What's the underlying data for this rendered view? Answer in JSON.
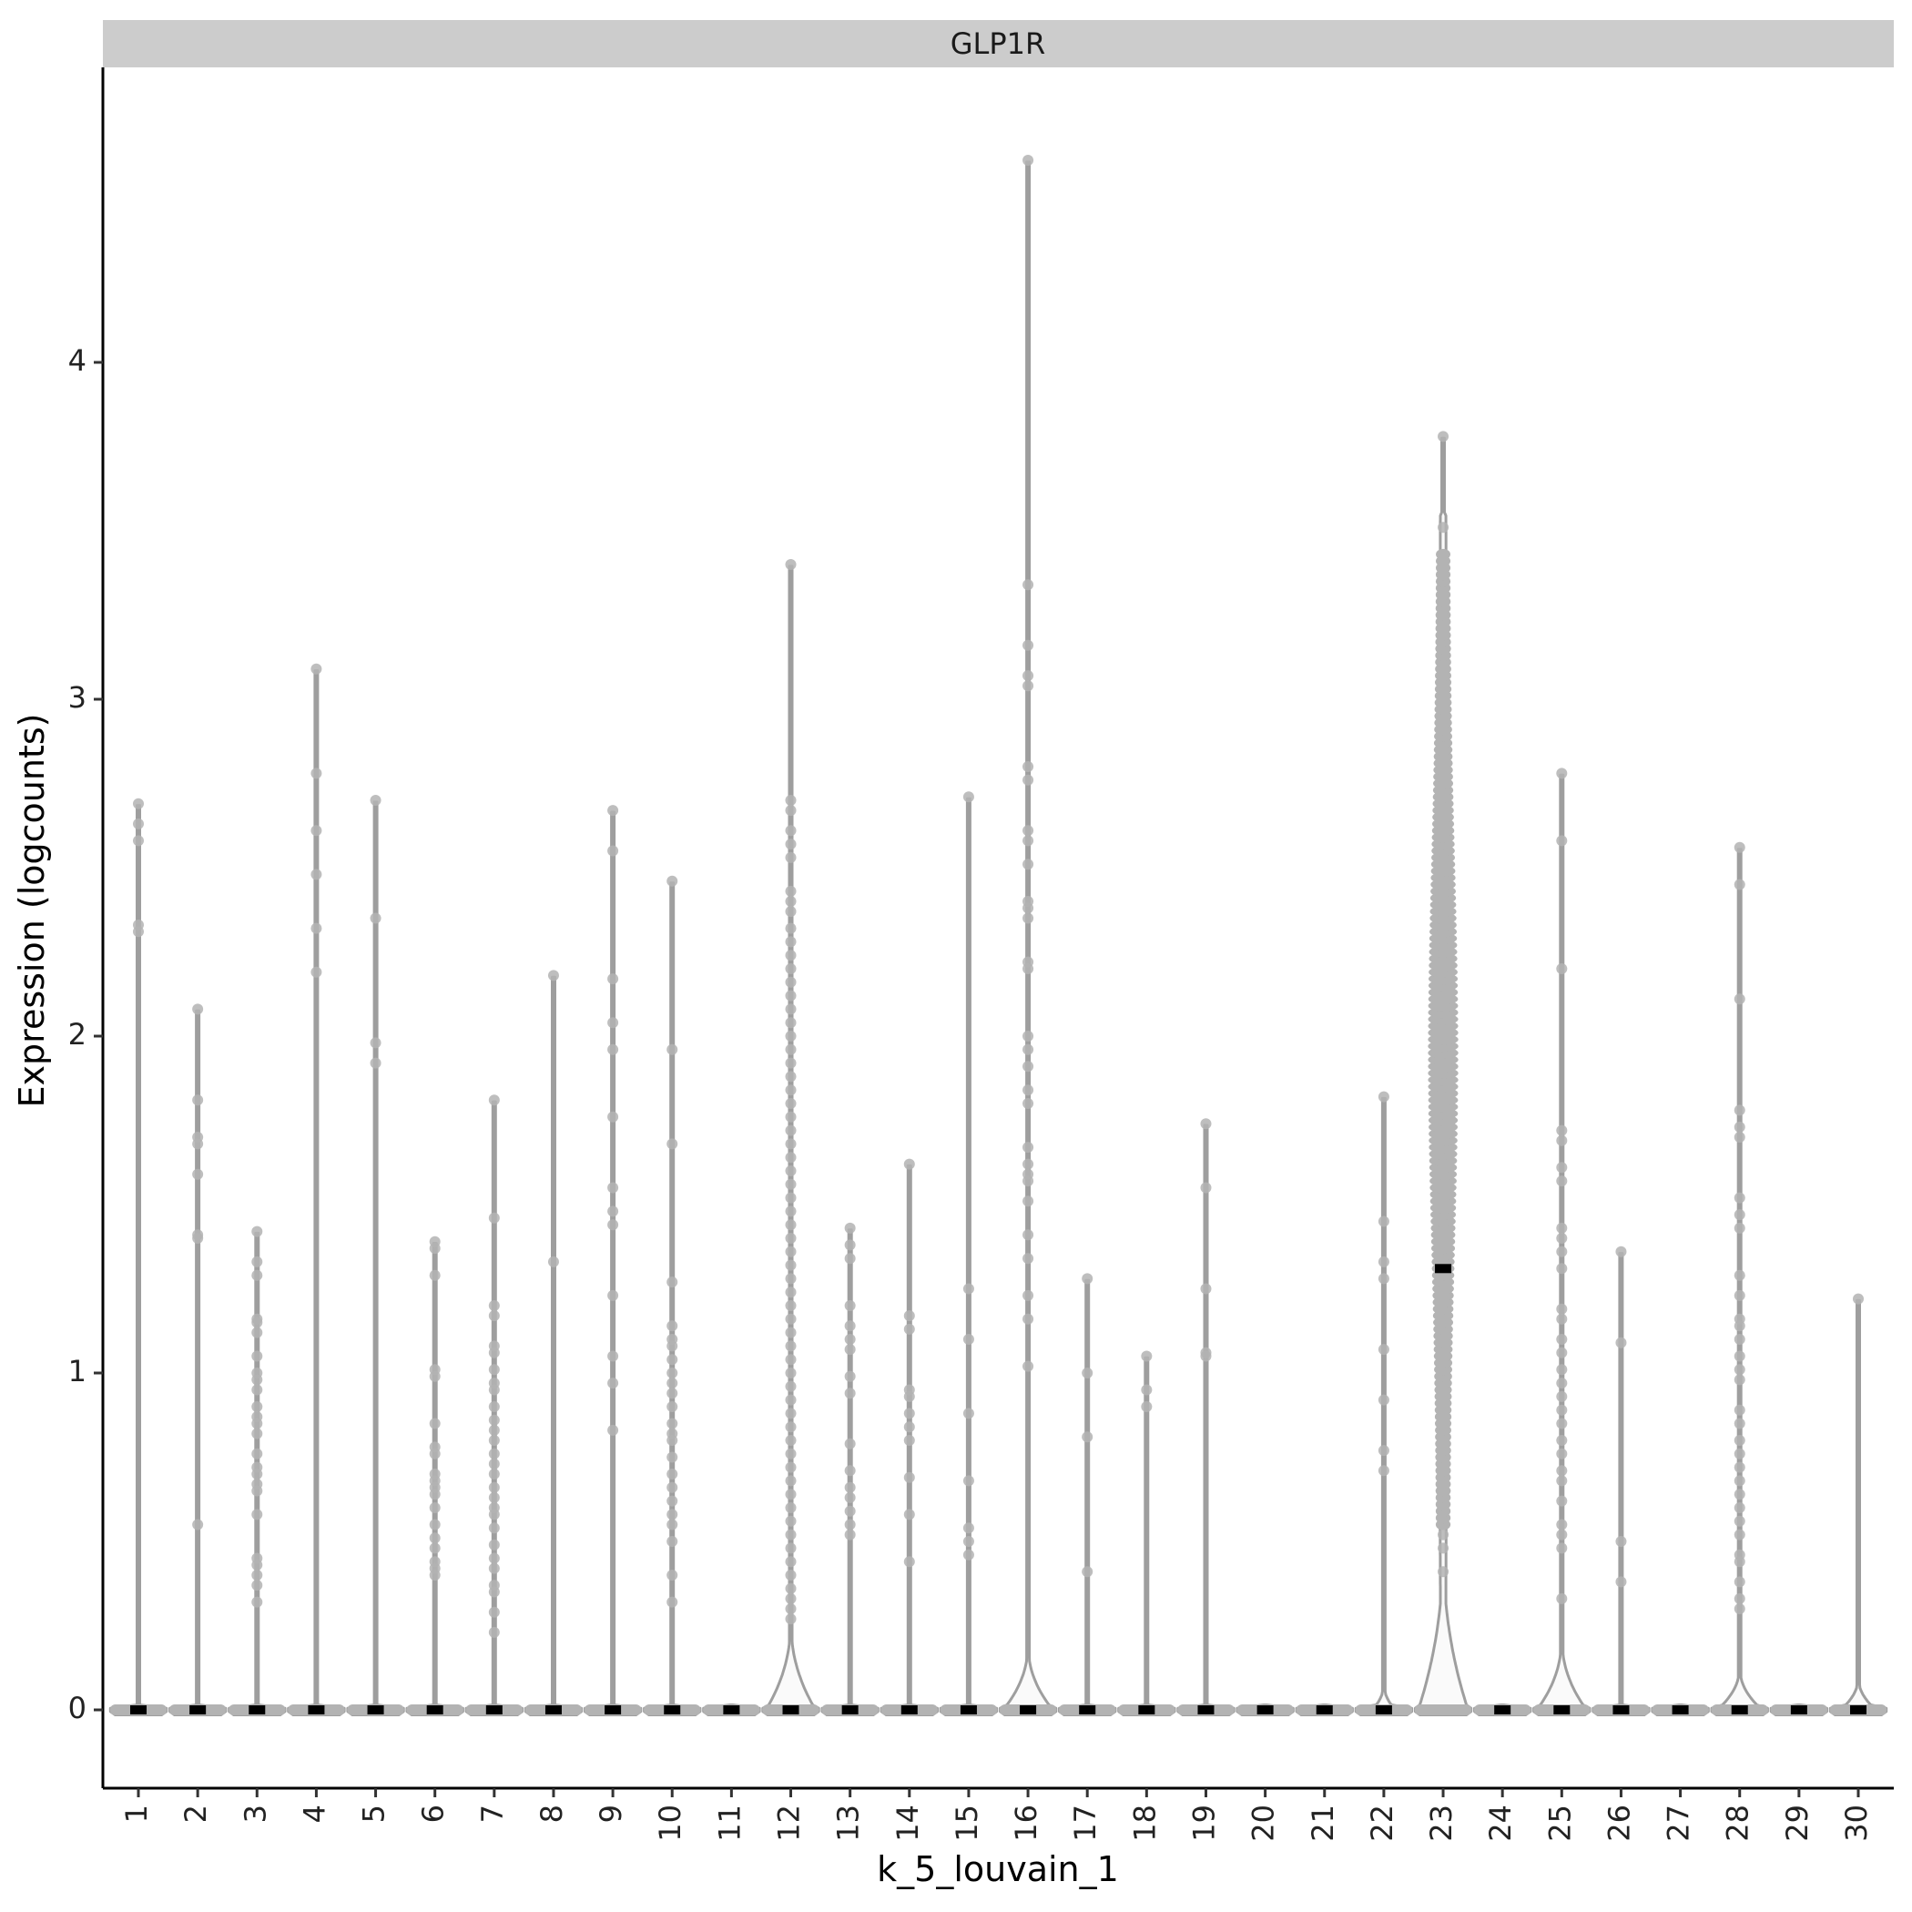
{
  "chart_data": {
    "type": "violin",
    "facet_title": "GLP1R",
    "xlabel": "k_5_louvain_1",
    "ylabel": "Expression (logcounts)",
    "categories": [
      "1",
      "2",
      "3",
      "4",
      "5",
      "6",
      "7",
      "8",
      "9",
      "10",
      "11",
      "12",
      "13",
      "14",
      "15",
      "16",
      "17",
      "18",
      "19",
      "20",
      "21",
      "22",
      "23",
      "24",
      "25",
      "26",
      "27",
      "28",
      "29",
      "30"
    ],
    "y_ticks": [
      0,
      1,
      2,
      3,
      4
    ],
    "ylim": [
      -0.2,
      4.8
    ],
    "medians": [
      0,
      0,
      0,
      0,
      0,
      0,
      0,
      0,
      0,
      0,
      0,
      0,
      0,
      0,
      0,
      0,
      0,
      0,
      0,
      0,
      0,
      0,
      1.31,
      0,
      0,
      0,
      0,
      0,
      0,
      0
    ],
    "max_values": [
      2.69,
      2.08,
      1.42,
      3.09,
      2.7,
      1.39,
      1.81,
      2.18,
      2.67,
      2.46,
      0,
      3.4,
      1.43,
      1.62,
      2.71,
      4.6,
      1.28,
      1.05,
      1.74,
      0,
      0,
      1.82,
      3.78,
      0,
      2.78,
      1.36,
      0,
      2.56,
      0,
      1.22
    ],
    "violin_shapes": [
      {
        "cluster": "12",
        "bulge_height": 0.27,
        "bulge_half_width": 0.42
      },
      {
        "cluster": "16",
        "bulge_height": 0.2,
        "bulge_half_width": 0.42
      },
      {
        "cluster": "22",
        "bulge_height": 0.08,
        "bulge_half_width": 0.2
      },
      {
        "cluster": "23",
        "bulge_height": 0.5,
        "bulge_half_width": 0.42
      },
      {
        "cluster": "25",
        "bulge_height": 0.22,
        "bulge_half_width": 0.42
      },
      {
        "cluster": "28",
        "bulge_height": 0.13,
        "bulge_half_width": 0.38
      },
      {
        "cluster": "30",
        "bulge_height": 0.1,
        "bulge_half_width": 0.3
      }
    ],
    "points": [
      [
        2.69,
        2.63,
        2.58,
        2.33,
        2.31
      ],
      [
        2.08,
        1.81,
        1.7,
        1.68,
        1.59,
        1.41,
        1.4,
        0.55
      ],
      [
        1.42,
        1.33,
        1.29,
        1.16,
        1.15,
        1.12,
        1.05,
        1.0,
        0.98,
        0.95,
        0.9,
        0.87,
        0.85,
        0.82,
        0.76,
        0.72,
        0.7,
        0.67,
        0.65,
        0.58,
        0.45,
        0.43,
        0.4,
        0.37,
        0.32
      ],
      [
        3.09,
        2.78,
        2.61,
        2.48,
        2.32,
        2.19
      ],
      [
        2.7,
        2.35,
        1.98,
        1.92
      ],
      [
        1.39,
        1.37,
        1.29,
        1.01,
        0.99,
        0.85,
        0.78,
        0.76,
        0.7,
        0.68,
        0.66,
        0.64,
        0.6,
        0.55,
        0.51,
        0.48,
        0.44,
        0.42,
        0.4
      ],
      [
        1.81,
        1.46,
        1.2,
        1.17,
        1.08,
        1.06,
        1.01,
        0.97,
        0.95,
        0.9,
        0.86,
        0.83,
        0.8,
        0.76,
        0.73,
        0.7,
        0.66,
        0.63,
        0.6,
        0.58,
        0.54,
        0.49,
        0.45,
        0.42,
        0.37,
        0.35,
        0.29,
        0.23
      ],
      [
        2.18,
        1.33
      ],
      [
        2.67,
        2.55,
        2.17,
        2.04,
        1.96,
        1.76,
        1.55,
        1.48,
        1.44,
        1.23,
        1.05,
        0.97,
        0.83
      ],
      [
        2.46,
        1.96,
        1.68,
        1.27,
        1.14,
        1.1,
        1.08,
        1.04,
        1.0,
        0.97,
        0.94,
        0.9,
        0.85,
        0.82,
        0.8,
        0.75,
        0.7,
        0.66,
        0.62,
        0.58,
        0.55,
        0.5,
        0.4,
        0.32
      ],
      [],
      [
        3.4,
        2.7,
        2.67,
        2.61,
        2.57,
        2.53,
        2.43,
        2.4,
        2.37,
        2.32,
        2.28,
        2.24,
        2.2,
        2.16,
        2.12,
        2.08,
        2.04,
        2.0,
        1.96,
        1.92,
        1.88,
        1.84,
        1.8,
        1.76,
        1.72,
        1.68,
        1.64,
        1.6,
        1.56,
        1.52,
        1.48,
        1.44,
        1.4,
        1.36,
        1.32,
        1.28,
        1.24,
        1.2,
        1.16,
        1.12,
        1.08,
        1.04,
        1.0,
        0.96,
        0.92,
        0.88,
        0.84,
        0.8,
        0.76,
        0.72,
        0.68,
        0.64,
        0.6,
        0.56,
        0.52,
        0.48,
        0.44,
        0.4,
        0.36,
        0.33,
        0.3,
        0.27
      ],
      [
        1.43,
        1.38,
        1.34,
        1.2,
        1.14,
        1.1,
        1.07,
        0.99,
        0.94,
        0.79,
        0.71,
        0.66,
        0.63,
        0.59,
        0.55,
        0.52
      ],
      [
        1.62,
        1.17,
        1.13,
        0.95,
        0.93,
        0.88,
        0.84,
        0.8,
        0.69,
        0.58,
        0.44
      ],
      [
        2.71,
        1.25,
        1.1,
        0.88,
        0.68,
        0.54,
        0.5,
        0.46
      ],
      [
        4.6,
        3.34,
        3.16,
        3.07,
        3.04,
        2.8,
        2.76,
        2.61,
        2.58,
        2.51,
        2.4,
        2.38,
        2.35,
        2.22,
        2.2,
        2.0,
        1.96,
        1.91,
        1.84,
        1.8,
        1.67,
        1.62,
        1.59,
        1.57,
        1.51,
        1.41,
        1.34,
        1.23,
        1.16,
        1.02
      ],
      [
        1.28,
        1.0,
        0.81,
        0.41
      ],
      [
        1.05,
        0.95,
        0.9
      ],
      [
        1.74,
        1.55,
        1.25,
        1.06,
        1.05
      ],
      [],
      [],
      [
        1.82,
        1.45,
        1.33,
        1.28,
        1.07,
        0.92,
        0.77,
        0.71
      ],
      [
        3.78,
        3.51,
        3.42,
        3.39,
        3.36,
        3.32,
        3.28,
        3.24,
        3.2,
        3.16,
        3.12,
        3.08,
        3.04,
        3.0,
        2.96,
        2.92,
        2.88,
        2.84,
        2.8,
        2.76,
        2.72,
        2.68,
        2.64,
        2.6,
        2.56,
        2.52,
        2.48,
        2.44,
        2.4,
        2.36,
        2.32,
        2.28,
        2.24,
        2.2,
        2.16,
        2.12,
        2.08,
        2.04,
        2.0,
        1.96,
        1.92,
        1.88,
        1.84,
        1.8,
        1.76,
        1.72,
        1.68,
        1.64,
        1.6,
        1.56,
        1.52,
        1.48,
        1.44,
        1.4,
        1.36,
        1.32,
        1.28,
        1.24,
        1.2,
        1.16,
        1.12,
        1.08,
        1.04,
        1.0,
        0.96,
        0.92,
        0.88,
        0.84,
        0.8,
        0.76,
        0.72,
        0.68,
        0.64,
        0.6,
        0.56,
        0.52,
        0.48,
        0.41
      ],
      [],
      [
        2.78,
        2.58,
        2.2,
        1.72,
        1.69,
        1.61,
        1.57,
        1.43,
        1.4,
        1.36,
        1.31,
        1.19,
        1.16,
        1.1,
        1.06,
        1.01,
        0.97,
        0.93,
        0.89,
        0.85,
        0.8,
        0.76,
        0.71,
        0.68,
        0.62,
        0.55,
        0.52,
        0.48,
        0.33
      ],
      [
        1.36,
        1.09,
        0.5,
        0.38
      ],
      [],
      [
        2.56,
        2.45,
        2.11,
        1.78,
        1.73,
        1.7,
        1.52,
        1.47,
        1.43,
        1.29,
        1.23,
        1.16,
        1.14,
        1.1,
        1.05,
        1.01,
        0.98,
        0.89,
        0.85,
        0.8,
        0.76,
        0.72,
        0.68,
        0.64,
        0.6,
        0.56,
        0.52,
        0.46,
        0.44,
        0.38,
        0.33,
        0.3
      ],
      [],
      [
        1.22
      ]
    ]
  }
}
